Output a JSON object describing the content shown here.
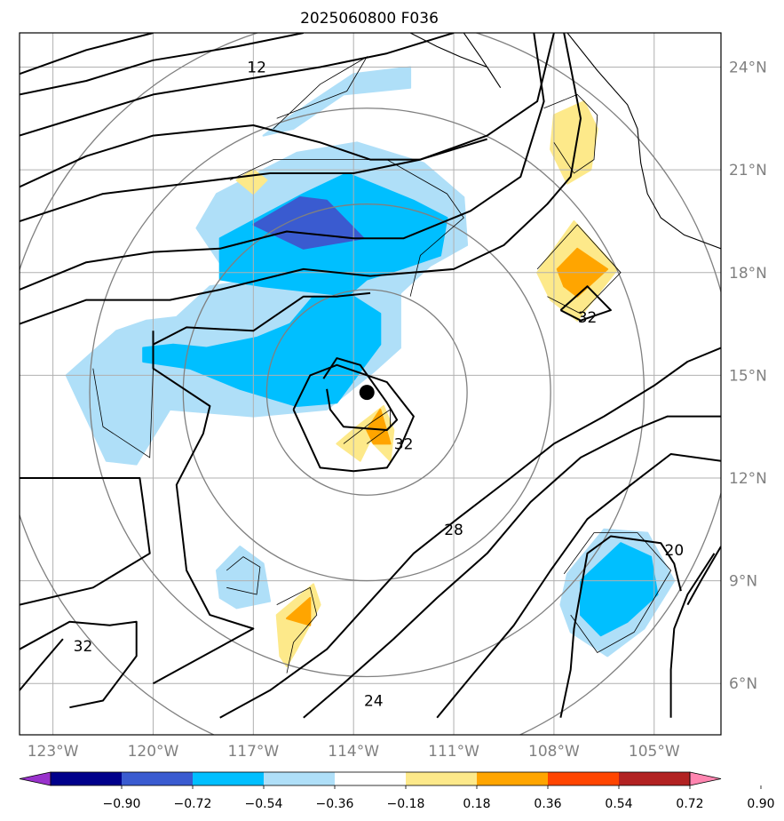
{
  "chart_data": {
    "type": "map",
    "title": "2025060800 F036",
    "projection": "cylindrical lon/lat",
    "xlim": [
      -124,
      -103
    ],
    "ylim": [
      4.5,
      25
    ],
    "grid": true,
    "x_ticks": [
      {
        "value": -123,
        "label": "123°W"
      },
      {
        "value": -120,
        "label": "120°W"
      },
      {
        "value": -117,
        "label": "117°W"
      },
      {
        "value": -114,
        "label": "114°W"
      },
      {
        "value": -111,
        "label": "111°W"
      },
      {
        "value": -108,
        "label": "108°W"
      },
      {
        "value": -105,
        "label": "105°W"
      }
    ],
    "y_ticks": [
      {
        "value": 6,
        "label": "6°N"
      },
      {
        "value": 9,
        "label": "9°N"
      },
      {
        "value": 12,
        "label": "12°N"
      },
      {
        "value": 15,
        "label": "15°N"
      },
      {
        "value": 18,
        "label": "18°N"
      },
      {
        "value": 21,
        "label": "21°N"
      },
      {
        "value": 24,
        "label": "24°N"
      }
    ],
    "storm_center": {
      "lon": -113.6,
      "lat": 14.5
    },
    "range_rings_deg": [
      3,
      5.5,
      8.3,
      11
    ],
    "colorbar": {
      "levels": [
        -0.9,
        -0.72,
        -0.54,
        -0.36,
        -0.18,
        0.18,
        0.36,
        0.54,
        0.72,
        0.9
      ],
      "labels": [
        "−0.90",
        "−0.72",
        "−0.54",
        "−0.36",
        "−0.18",
        "0.18",
        "0.36",
        "0.54",
        "0.72",
        "0.90"
      ],
      "colors": [
        "#9932cc",
        "#00008b",
        "#3a5bd0",
        "#00bfff",
        "#afdff8",
        "#ffffff",
        "#fde98a",
        "#ffa500",
        "#ff4500",
        "#b22222",
        "#ff85b0"
      ],
      "extend": "both"
    },
    "contour_labels": [
      {
        "text": "12",
        "lon": -116.9,
        "lat": 24.0
      },
      {
        "text": "32",
        "lon": -107.0,
        "lat": 16.7
      },
      {
        "text": "32",
        "lon": -112.5,
        "lat": 13.0
      },
      {
        "text": "28",
        "lon": -111.0,
        "lat": 10.5
      },
      {
        "text": "20",
        "lon": -104.4,
        "lat": 9.9
      },
      {
        "text": "32",
        "lon": -122.1,
        "lat": 7.1
      },
      {
        "text": "24",
        "lon": -113.4,
        "lat": 5.5
      }
    ],
    "filled_regions": [
      {
        "level": "-0.36..-0.18",
        "color": "#afdff8",
        "pts": [
          [
            -116,
            22.5
          ],
          [
            -114,
            23.8
          ],
          [
            -112.3,
            24.0
          ],
          [
            -112.3,
            23.4
          ],
          [
            -114.3,
            23.2
          ],
          [
            -115.8,
            22.2
          ],
          [
            -116.7,
            22.0
          ]
        ]
      },
      {
        "level": "-0.36..-0.18",
        "color": "#afdff8",
        "pts": [
          [
            -118.7,
            19.3
          ],
          [
            -118.1,
            20.3
          ],
          [
            -115.7,
            21.5
          ],
          [
            -113.9,
            21.8
          ],
          [
            -111.9,
            21.2
          ],
          [
            -110.7,
            20.2
          ],
          [
            -110.6,
            18.8
          ],
          [
            -111.7,
            18.2
          ],
          [
            -112.6,
            17.4
          ],
          [
            -112.6,
            15.8
          ],
          [
            -113.4,
            15.1
          ],
          [
            -114.8,
            14.0
          ],
          [
            -117.0,
            13.8
          ],
          [
            -119.5,
            14.0
          ],
          [
            -120.5,
            12.4
          ],
          [
            -121.4,
            12.5
          ],
          [
            -122.6,
            15.0
          ],
          [
            -121.1,
            16.3
          ],
          [
            -120.2,
            16.6
          ],
          [
            -119.3,
            16.7
          ],
          [
            -118.3,
            17.6
          ],
          [
            -117.6,
            17.7
          ]
        ]
      },
      {
        "level": "-0.54..-0.36",
        "color": "#00bfff",
        "pts": [
          [
            -118.0,
            19.0
          ],
          [
            -115.5,
            20.3
          ],
          [
            -114.2,
            20.9
          ],
          [
            -112.2,
            20.1
          ],
          [
            -111.2,
            19.6
          ],
          [
            -111.4,
            18.5
          ],
          [
            -112.6,
            18.1
          ],
          [
            -113.6,
            17.8
          ],
          [
            -114.2,
            17.3
          ],
          [
            -115.2,
            17.3
          ],
          [
            -115.9,
            16.5
          ],
          [
            -116.9,
            16.1
          ],
          [
            -118.4,
            15.8
          ],
          [
            -119.4,
            15.9
          ],
          [
            -120.3,
            15.8
          ],
          [
            -120.3,
            15.4
          ],
          [
            -118.9,
            15.2
          ],
          [
            -117.4,
            14.6
          ],
          [
            -115.7,
            14.1
          ],
          [
            -114.5,
            14.2
          ],
          [
            -113.2,
            15.9
          ],
          [
            -113.2,
            16.8
          ],
          [
            -114.0,
            17.3
          ],
          [
            -116.7,
            17.6
          ],
          [
            -118.0,
            17.8
          ]
        ]
      },
      {
        "level": "-0.72..-0.54",
        "color": "#3a5bd0",
        "pts": [
          [
            -117.0,
            19.4
          ],
          [
            -115.6,
            20.2
          ],
          [
            -114.8,
            20.1
          ],
          [
            -113.7,
            19.0
          ],
          [
            -115.5,
            18.7
          ]
        ]
      },
      {
        "level": "-0.36..-0.18",
        "color": "#afdff8",
        "pts": [
          [
            -118.1,
            9.3
          ],
          [
            -117.4,
            10.0
          ],
          [
            -116.7,
            9.5
          ],
          [
            -116.5,
            8.4
          ],
          [
            -117.5,
            8.2
          ],
          [
            -118.0,
            8.5
          ]
        ]
      },
      {
        "level": "-0.36..-0.18",
        "color": "#afdff8",
        "pts": [
          [
            -107.6,
            9.2
          ],
          [
            -106.5,
            10.5
          ],
          [
            -105.2,
            10.4
          ],
          [
            -104.4,
            9.0
          ],
          [
            -105.3,
            7.6
          ],
          [
            -106.4,
            6.8
          ],
          [
            -107.5,
            7.5
          ],
          [
            -107.8,
            8.3
          ]
        ]
      },
      {
        "level": "-0.54..-0.36",
        "color": "#00bfff",
        "pts": [
          [
            -107.2,
            9.0
          ],
          [
            -106.0,
            10.1
          ],
          [
            -105.1,
            9.7
          ],
          [
            -104.9,
            8.6
          ],
          [
            -105.8,
            7.8
          ],
          [
            -106.6,
            7.4
          ],
          [
            -107.2,
            8.0
          ]
        ]
      },
      {
        "level": "0.18..0.36",
        "color": "#fde98a",
        "pts": [
          [
            -108.0,
            22.6
          ],
          [
            -107.1,
            23.0
          ],
          [
            -106.7,
            22.2
          ],
          [
            -106.9,
            21.0
          ],
          [
            -107.6,
            20.6
          ],
          [
            -108.1,
            21.6
          ]
        ]
      },
      {
        "level": "0.18..0.36",
        "color": "#fde98a",
        "pts": [
          [
            -117.0,
            21.0
          ],
          [
            -116.6,
            20.7
          ],
          [
            -117.0,
            20.3
          ],
          [
            -117.5,
            20.7
          ]
        ]
      },
      {
        "level": "0.18..0.36",
        "color": "#fde98a",
        "pts": [
          [
            -108.5,
            18.0
          ],
          [
            -107.4,
            19.5
          ],
          [
            -106.1,
            18.1
          ],
          [
            -107.3,
            16.6
          ],
          [
            -108.1,
            17.2
          ]
        ]
      },
      {
        "level": "0.36..0.54",
        "color": "#ffa500",
        "pts": [
          [
            -107.9,
            18.1
          ],
          [
            -107.3,
            18.7
          ],
          [
            -106.4,
            18.1
          ],
          [
            -107.3,
            17.3
          ],
          [
            -107.7,
            17.6
          ]
        ]
      },
      {
        "level": "0.18..0.36",
        "color": "#fde98a",
        "pts": [
          [
            -113.5,
            13.1
          ],
          [
            -112.9,
            12.5
          ],
          [
            -112.8,
            13.4
          ],
          [
            -113.1,
            14.1
          ],
          [
            -113.9,
            13.5
          ],
          [
            -114.5,
            13.0
          ],
          [
            -113.8,
            12.5
          ]
        ]
      },
      {
        "level": "0.36..0.54",
        "color": "#ffa500",
        "pts": [
          [
            -113.4,
            13.0
          ],
          [
            -112.9,
            13.0
          ],
          [
            -113.2,
            14.0
          ],
          [
            -113.6,
            13.4
          ]
        ]
      },
      {
        "level": "0.18..0.36",
        "color": "#fde98a",
        "pts": [
          [
            -116.3,
            8.0
          ],
          [
            -115.2,
            8.9
          ],
          [
            -115.0,
            8.3
          ],
          [
            -115.7,
            7.0
          ],
          [
            -116.0,
            6.5
          ],
          [
            -116.2,
            6.8
          ]
        ]
      },
      {
        "level": "0.36..0.54",
        "color": "#ffa500",
        "pts": [
          [
            -116.0,
            7.9
          ],
          [
            -115.3,
            8.5
          ],
          [
            -115.3,
            7.7
          ]
        ]
      }
    ]
  }
}
